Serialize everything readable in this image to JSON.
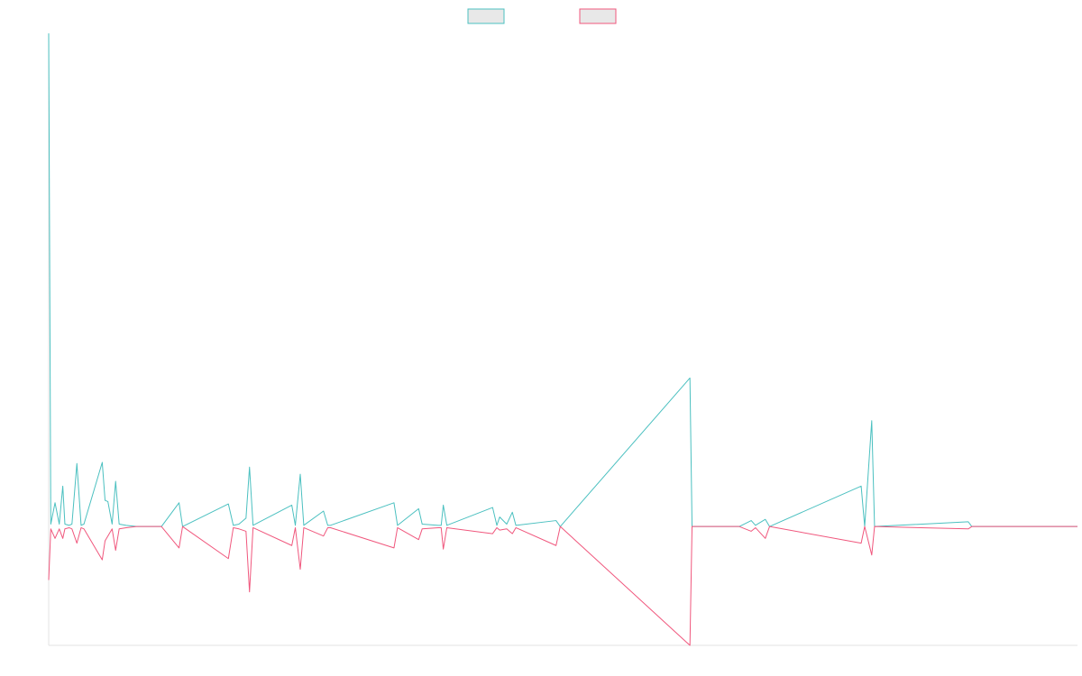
{
  "chart_data": {
    "type": "line",
    "title": "",
    "xlabel": "",
    "ylabel": "",
    "grid": false,
    "legend": "top-center",
    "x_range": [
      0,
      146
    ],
    "ylim": [
      -100,
      415
    ],
    "baseline": 0,
    "series": [
      {
        "name": "",
        "color": "#4bc0c0",
        "fill": "#e8e8e8",
        "points": [
          [
            0,
            415
          ],
          [
            0.3,
            2
          ],
          [
            0.9,
            20
          ],
          [
            1.5,
            2
          ],
          [
            2,
            34
          ],
          [
            2.3,
            2
          ],
          [
            2.9,
            1
          ],
          [
            3.3,
            2
          ],
          [
            4,
            53
          ],
          [
            4.6,
            1
          ],
          [
            5,
            2
          ],
          [
            7.6,
            54
          ],
          [
            8,
            22
          ],
          [
            8.4,
            21
          ],
          [
            9,
            2
          ],
          [
            9.5,
            38
          ],
          [
            10,
            2
          ],
          [
            11,
            1
          ],
          [
            12.5,
            0
          ],
          [
            16,
            0
          ],
          [
            18.5,
            20
          ],
          [
            19,
            0
          ],
          [
            25.5,
            19
          ],
          [
            26.2,
            1
          ],
          [
            27,
            2
          ],
          [
            28,
            7
          ],
          [
            28.5,
            50
          ],
          [
            29,
            1
          ],
          [
            34.5,
            18
          ],
          [
            35,
            1
          ],
          [
            35.7,
            44
          ],
          [
            36.2,
            1
          ],
          [
            39,
            13
          ],
          [
            39.6,
            1
          ],
          [
            40,
            1
          ],
          [
            49,
            20
          ],
          [
            49.5,
            1
          ],
          [
            52.5,
            15
          ],
          [
            53,
            2
          ],
          [
            55.3,
            1
          ],
          [
            55.7,
            1
          ],
          [
            56,
            18
          ],
          [
            56.5,
            1
          ],
          [
            63,
            16
          ],
          [
            63.6,
            1
          ],
          [
            64,
            8
          ],
          [
            65,
            2
          ],
          [
            65.8,
            12
          ],
          [
            66.3,
            1
          ],
          [
            72,
            5
          ],
          [
            72.6,
            0
          ],
          [
            91,
            125
          ],
          [
            91.3,
            0
          ],
          [
            98,
            0
          ],
          [
            99.7,
            5
          ],
          [
            100.3,
            1
          ],
          [
            101.7,
            6
          ],
          [
            102.3,
            0
          ],
          [
            115.3,
            34
          ],
          [
            115.8,
            0
          ],
          [
            116.8,
            89
          ],
          [
            117.2,
            0
          ],
          [
            130.5,
            4
          ],
          [
            131,
            0
          ],
          [
            146,
            0
          ]
        ]
      },
      {
        "name": "",
        "color": "#f0577d",
        "fill": "#e8e8e8",
        "points": [
          [
            0,
            -45
          ],
          [
            0.3,
            -2
          ],
          [
            0.9,
            -10
          ],
          [
            1.5,
            -2
          ],
          [
            2,
            -10
          ],
          [
            2.3,
            -2
          ],
          [
            2.9,
            -1
          ],
          [
            3.3,
            -2
          ],
          [
            4,
            -14
          ],
          [
            4.6,
            -1
          ],
          [
            5,
            -2
          ],
          [
            7.6,
            -28
          ],
          [
            8,
            -12
          ],
          [
            8.4,
            -8
          ],
          [
            9,
            -2
          ],
          [
            9.5,
            -20
          ],
          [
            10,
            -2
          ],
          [
            11,
            -1
          ],
          [
            12.5,
            0
          ],
          [
            16,
            0
          ],
          [
            18.5,
            -18
          ],
          [
            19,
            0
          ],
          [
            25.5,
            -27
          ],
          [
            26.2,
            -1
          ],
          [
            27,
            -2
          ],
          [
            28,
            -4
          ],
          [
            28.5,
            -55
          ],
          [
            29,
            -1
          ],
          [
            34.5,
            -16
          ],
          [
            35,
            -1
          ],
          [
            35.7,
            -36
          ],
          [
            36.2,
            -1
          ],
          [
            39,
            -8
          ],
          [
            39.6,
            -1
          ],
          [
            40,
            -1
          ],
          [
            49,
            -18
          ],
          [
            49.5,
            -1
          ],
          [
            52.5,
            -11
          ],
          [
            53,
            -2
          ],
          [
            55.3,
            -1
          ],
          [
            55.7,
            -1
          ],
          [
            56,
            -19
          ],
          [
            56.5,
            -1
          ],
          [
            63,
            -6
          ],
          [
            63.6,
            -1
          ],
          [
            64,
            -3
          ],
          [
            65,
            -2
          ],
          [
            65.8,
            -6
          ],
          [
            66.3,
            -1
          ],
          [
            72,
            -16
          ],
          [
            72.6,
            0
          ],
          [
            91,
            -100
          ],
          [
            91.3,
            0
          ],
          [
            98,
            0
          ],
          [
            99.7,
            -4
          ],
          [
            100.3,
            -1
          ],
          [
            101.7,
            -10
          ],
          [
            102.3,
            0
          ],
          [
            115.3,
            -14
          ],
          [
            115.8,
            0
          ],
          [
            116.8,
            -24
          ],
          [
            117.2,
            0
          ],
          [
            130.5,
            -2
          ],
          [
            131,
            0
          ],
          [
            146,
            0
          ]
        ]
      }
    ]
  }
}
